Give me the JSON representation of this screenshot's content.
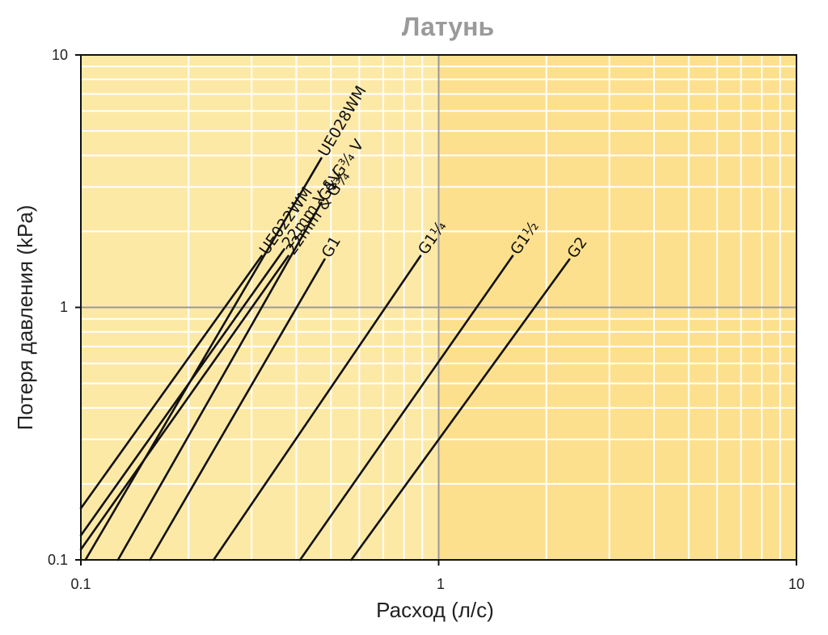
{
  "chart_data": {
    "type": "line",
    "title": "Латунь",
    "xlabel": "Расход (л/с)",
    "ylabel": "Потеря давления (kPa)",
    "x_scale": "log",
    "y_scale": "log",
    "xlim": [
      0.1,
      10
    ],
    "ylim": [
      0.1,
      10
    ],
    "x_ticks": [
      "0.1",
      "1",
      "10"
    ],
    "y_ticks": [
      "0.1",
      "1",
      "10"
    ],
    "grid": true,
    "colors": {
      "plot_bg_left": "#fde9a6",
      "plot_bg_right": "#fde08e",
      "grid_minor": "#ffffff",
      "grid_major": "#999999",
      "line": "#111111",
      "title": "#9a9a9a"
    },
    "series": [
      {
        "name": "UE022WM",
        "x": [
          0.1,
          0.32
        ],
        "y": [
          0.16,
          1.6
        ]
      },
      {
        "name": "22mm V & G¾ V",
        "x": [
          0.1,
          0.37
        ],
        "y": [
          0.125,
          1.7
        ]
      },
      {
        "name": "22mm & G¾",
        "x": [
          0.1,
          0.38
        ],
        "y": [
          0.11,
          1.6
        ]
      },
      {
        "name": "UE028WM",
        "x": [
          0.103,
          0.47
        ],
        "y": [
          0.1,
          3.9
        ]
      },
      {
        "name": "G1V",
        "x": [
          0.127,
          0.47
        ],
        "y": [
          0.1,
          2.6
        ]
      },
      {
        "name": "G1",
        "x": [
          0.156,
          0.48
        ],
        "y": [
          0.1,
          1.55
        ]
      },
      {
        "name": "G1¼",
        "x": [
          0.235,
          0.89
        ],
        "y": [
          0.1,
          1.6
        ]
      },
      {
        "name": "G1½",
        "x": [
          0.41,
          1.61
        ],
        "y": [
          0.1,
          1.6
        ]
      },
      {
        "name": "G2",
        "x": [
          0.57,
          2.32
        ],
        "y": [
          0.1,
          1.55
        ]
      }
    ]
  }
}
